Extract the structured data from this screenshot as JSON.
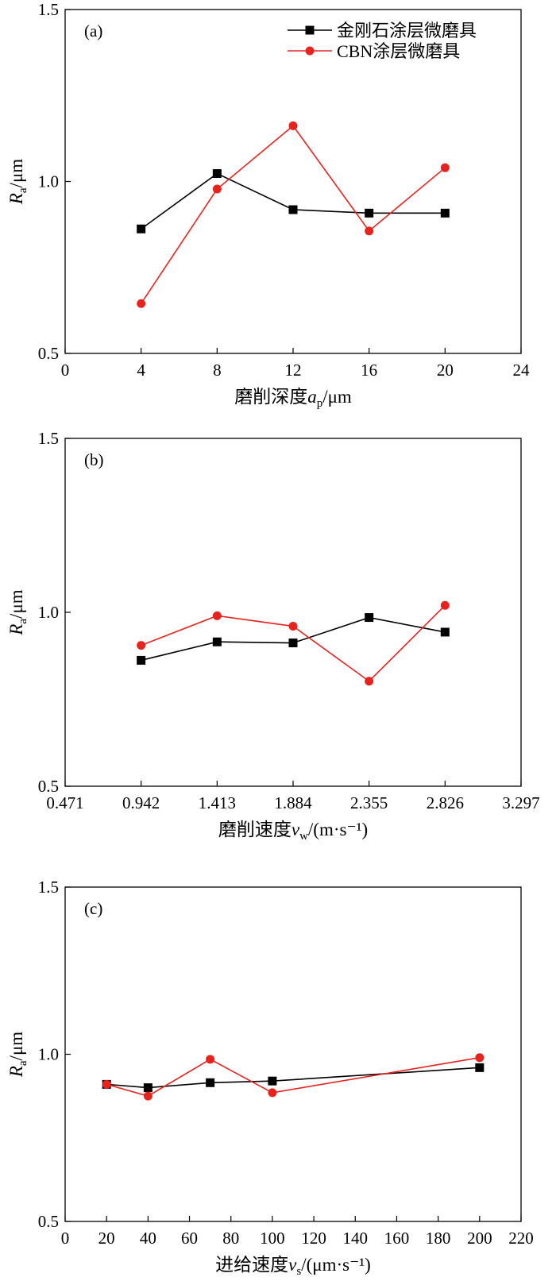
{
  "legend": [
    {
      "label": "金刚石涂层微磨具",
      "color": "#000000",
      "marker": "square"
    },
    {
      "label": "CBN涂层微磨具",
      "color": "#e8231e",
      "marker": "circle"
    }
  ],
  "chart_data": [
    {
      "type": "line",
      "panel_label": "(a)",
      "title": "",
      "xlabel": {
        "main": "磨削深度",
        "var": "a",
        "sub": "p",
        "unit": "/μm"
      },
      "ylabel": {
        "var": "R",
        "sub": "a",
        "unit": "/μm"
      },
      "xlim": [
        0,
        24
      ],
      "ylim": [
        0.5,
        1.5
      ],
      "xticks": [
        "0",
        "4",
        "8",
        "12",
        "16",
        "20",
        "24"
      ],
      "yticks": [
        "0.5",
        "1.0",
        "1.5"
      ],
      "legend_position": "top-right",
      "x": [
        4,
        8,
        12,
        16,
        20
      ],
      "series": [
        {
          "name": "金刚石涂层微磨具",
          "values": [
            0.862,
            1.023,
            0.918,
            0.908,
            0.908
          ]
        },
        {
          "name": "CBN涂层微磨具",
          "values": [
            0.645,
            0.978,
            1.162,
            0.856,
            1.04
          ]
        }
      ]
    },
    {
      "type": "line",
      "panel_label": "(b)",
      "title": "",
      "xlabel": {
        "main": "磨削速度",
        "var": "v",
        "sub": "w",
        "unit": "/(m·s⁻¹)"
      },
      "ylabel": {
        "var": "R",
        "sub": "a",
        "unit": "/μm"
      },
      "xlim": [
        0.471,
        3.297
      ],
      "ylim": [
        0.5,
        1.5
      ],
      "xticks": [
        "0.471",
        "0.942",
        "1.413",
        "1.884",
        "2.355",
        "2.826",
        "3.297"
      ],
      "yticks": [
        "0.5",
        "1.0",
        "1.5"
      ],
      "x": [
        0.942,
        1.413,
        1.884,
        2.355,
        2.826
      ],
      "series": [
        {
          "name": "金刚石涂层微磨具",
          "values": [
            0.862,
            0.915,
            0.912,
            0.985,
            0.943
          ]
        },
        {
          "name": "CBN涂层微磨具",
          "values": [
            0.905,
            0.99,
            0.96,
            0.802,
            1.02
          ]
        }
      ]
    },
    {
      "type": "line",
      "panel_label": "(c)",
      "title": "",
      "xlabel": {
        "main": "进给速度",
        "var": "v",
        "sub": "s",
        "unit": "/(μm·s⁻¹)"
      },
      "ylabel": {
        "var": "R",
        "sub": "a",
        "unit": "/μm"
      },
      "xlim": [
        0,
        220
      ],
      "ylim": [
        0.5,
        1.5
      ],
      "xticks": [
        "0",
        "20",
        "40",
        "60",
        "80",
        "100",
        "120",
        "140",
        "160",
        "180",
        "200",
        "220"
      ],
      "yticks": [
        "0.5",
        "1.0",
        "1.5"
      ],
      "x": [
        20,
        40,
        70,
        100,
        200
      ],
      "series": [
        {
          "name": "金刚石涂层微磨具",
          "values": [
            0.91,
            0.9,
            0.915,
            0.92,
            0.96
          ]
        },
        {
          "name": "CBN涂层微磨具",
          "values": [
            0.91,
            0.875,
            0.985,
            0.885,
            0.99
          ]
        }
      ]
    }
  ]
}
